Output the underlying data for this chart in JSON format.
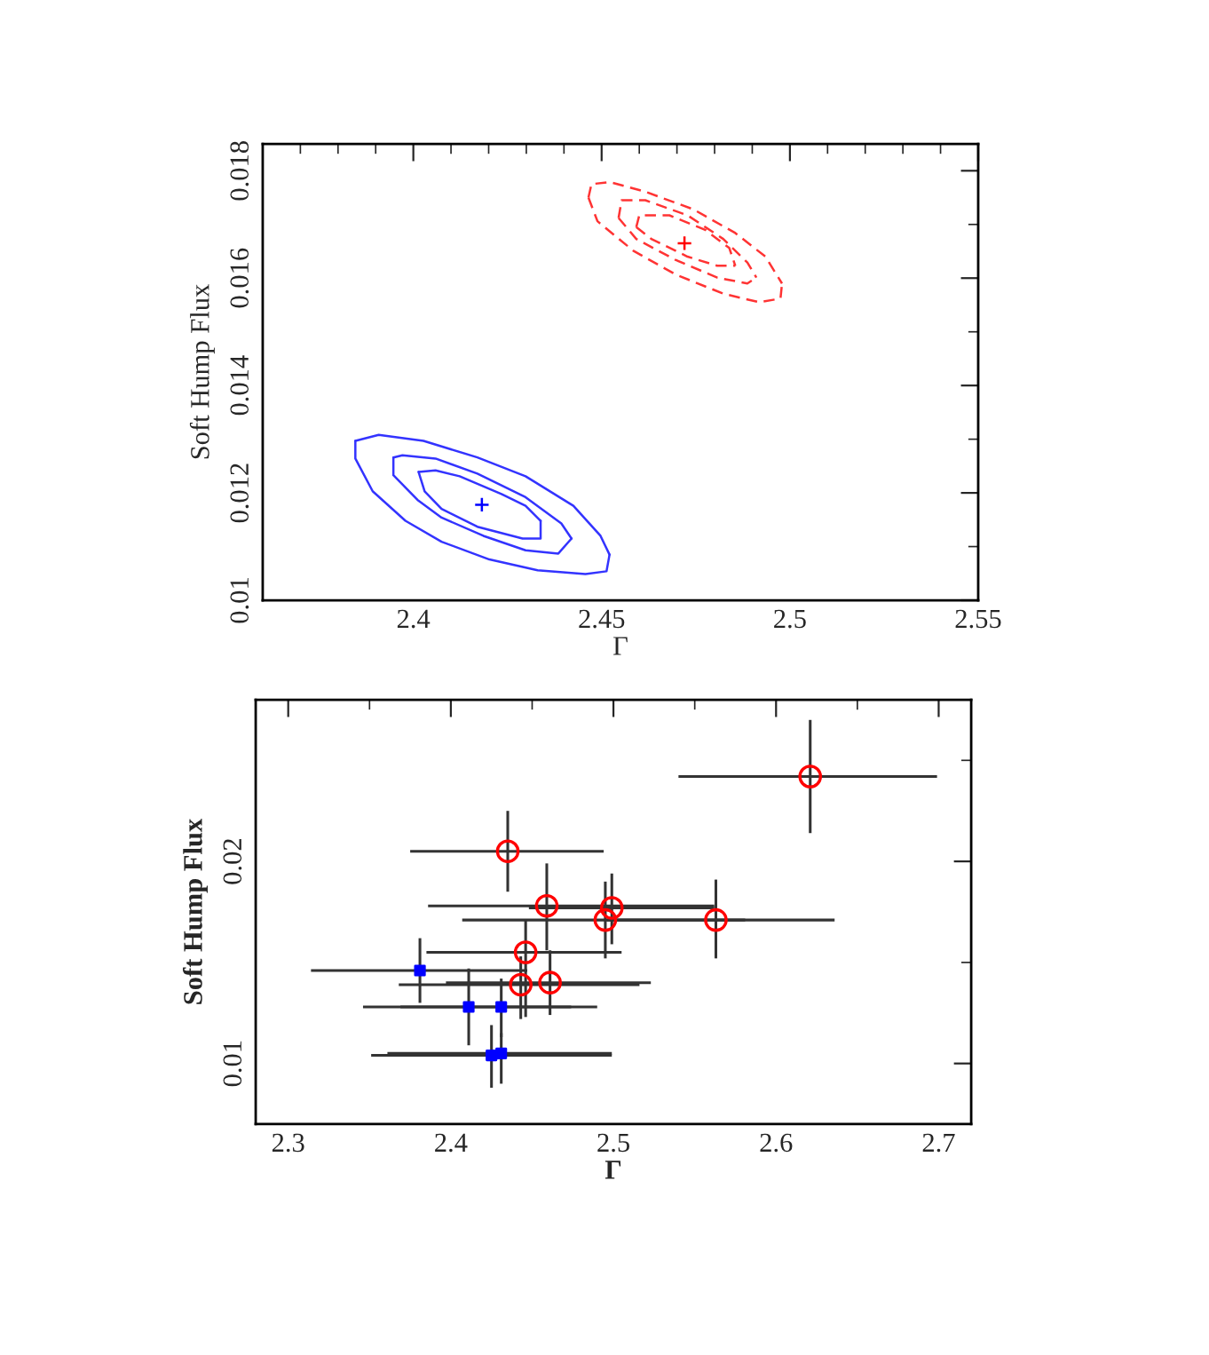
{
  "chart_data": [
    {
      "type": "line",
      "xlabel": "Γ",
      "ylabel": "Soft Hump Flux",
      "xlim": [
        2.36,
        2.55
      ],
      "ylim": [
        0.01,
        0.0185
      ],
      "xticks": [
        {
          "value": 2.37,
          "label": null
        },
        {
          "value": 2.38,
          "label": null
        },
        {
          "value": 2.39,
          "label": null
        },
        2.4,
        {
          "value": 2.41,
          "label": null
        },
        {
          "value": 2.42,
          "label": null
        },
        {
          "value": 2.43,
          "label": null
        },
        {
          "value": 2.44,
          "label": null
        },
        2.45,
        {
          "value": 2.46,
          "label": null
        },
        {
          "value": 2.47,
          "label": null
        },
        {
          "value": 2.48,
          "label": null
        },
        {
          "value": 2.49,
          "label": null
        },
        2.5,
        {
          "value": 2.51,
          "label": null
        },
        {
          "value": 2.52,
          "label": null
        },
        {
          "value": 2.53,
          "label": null
        },
        {
          "value": 2.54,
          "label": null
        },
        2.55
      ],
      "yticks": [
        0.01,
        {
          "value": 0.011,
          "label": null
        },
        0.012,
        {
          "value": 0.013,
          "label": null
        },
        0.014,
        {
          "value": 0.015,
          "label": null
        },
        0.016,
        {
          "value": 0.017,
          "label": null
        },
        0.018
      ],
      "series": [
        {
          "color": "#3333ff",
          "line_style": "solid",
          "marker": "none",
          "x": [
            2.3846,
            2.3908,
            2.4027,
            2.417,
            2.4298,
            2.4425,
            2.4497,
            2.4521
          ],
          "values": [
            0.01297,
            0.01308,
            0.01297,
            0.01266,
            0.01231,
            0.01176,
            0.0112,
            0.01085
          ]
        },
        {
          "color": "#3333ff",
          "line_style": "solid",
          "marker": "none",
          "x": [
            2.3846,
            2.3846,
            2.3892,
            2.3979,
            2.4075,
            2.4202,
            2.433,
            2.4457,
            2.4513,
            2.4521
          ],
          "values": [
            0.01297,
            0.01264,
            0.01203,
            0.01148,
            0.01109,
            0.01076,
            0.01056,
            0.01049,
            0.01054,
            0.01085
          ]
        },
        {
          "color": "#3333ff",
          "line_style": "solid",
          "marker": "none",
          "x": [
            2.3947,
            2.3971,
            2.4059,
            2.417,
            2.4298,
            2.4393,
            2.442
          ],
          "values": [
            0.01266,
            0.0127,
            0.01264,
            0.01236,
            0.01192,
            0.01143,
            0.01115
          ]
        },
        {
          "color": "#3333ff",
          "line_style": "solid",
          "marker": "none",
          "x": [
            2.3947,
            2.3947,
            2.4011,
            2.4075,
            2.4186,
            2.4298,
            2.4385,
            2.442
          ],
          "values": [
            0.01266,
            0.01233,
            0.01187,
            0.01154,
            0.0112,
            0.01093,
            0.01087,
            0.01115
          ]
        },
        {
          "color": "#3333ff",
          "line_style": "solid",
          "marker": "none",
          "x": [
            2.4014,
            2.4059,
            2.4123,
            2.4234,
            2.4298,
            2.4338
          ],
          "values": [
            0.01239,
            0.01242,
            0.01231,
            0.01198,
            0.01176,
            0.01148
          ]
        },
        {
          "color": "#3333ff",
          "line_style": "solid",
          "marker": "none",
          "x": [
            2.4014,
            2.403,
            2.4075,
            2.417,
            2.429,
            2.4338,
            2.4338
          ],
          "values": [
            0.01239,
            0.01203,
            0.0117,
            0.01137,
            0.01115,
            0.01115,
            0.01148
          ]
        },
        {
          "type": "scatter",
          "color": "#0000ff",
          "marker": "cross",
          "x": [
            2.4182
          ],
          "values": [
            0.01178
          ]
        },
        {
          "color": "#ff3333",
          "line_style": "dashed",
          "marker": "none",
          "x": [
            2.4465,
            2.4473,
            2.4521,
            2.4616,
            2.4744,
            2.4855,
            2.4935,
            2.4979
          ],
          "values": [
            0.0175,
            0.01775,
            0.01779,
            0.01761,
            0.01728,
            0.01684,
            0.0164,
            0.0159
          ]
        },
        {
          "color": "#ff3333",
          "line_style": "dashed",
          "marker": "none",
          "x": [
            2.4465,
            2.4489,
            2.4584,
            2.4696,
            2.4823,
            2.4919,
            2.4975,
            2.4979
          ],
          "values": [
            0.0175,
            0.01706,
            0.01651,
            0.01607,
            0.01571,
            0.01555,
            0.01562,
            0.0159
          ]
        },
        {
          "color": "#ff3333",
          "line_style": "dashed",
          "marker": "none",
          "x": [
            2.4545,
            2.4553,
            2.4616,
            2.4728,
            2.4823,
            2.4887,
            2.4911
          ],
          "values": [
            0.01712,
            0.01745,
            0.01745,
            0.01717,
            0.01673,
            0.01629,
            0.01601
          ]
        },
        {
          "color": "#ff3333",
          "line_style": "dashed",
          "marker": "none",
          "x": [
            2.4545,
            2.4592,
            2.4696,
            2.4807,
            2.4887,
            2.4911
          ],
          "values": [
            0.01712,
            0.01673,
            0.01634,
            0.01601,
            0.0159,
            0.01601
          ]
        },
        {
          "color": "#ff3333",
          "line_style": "dashed",
          "marker": "none",
          "x": [
            2.4592,
            2.46,
            2.468,
            2.4775,
            2.4839,
            2.4855
          ],
          "values": [
            0.01695,
            0.01717,
            0.01717,
            0.0169,
            0.01656,
            0.01623
          ]
        },
        {
          "color": "#ff3333",
          "line_style": "dashed",
          "marker": "none",
          "x": [
            2.4592,
            2.4632,
            2.4728,
            2.4807,
            2.4855
          ],
          "values": [
            0.01695,
            0.01673,
            0.0164,
            0.01623,
            0.01623
          ]
        },
        {
          "type": "scatter",
          "color": "#ff0000",
          "marker": "cross",
          "x": [
            2.472
          ],
          "values": [
            0.01665
          ]
        }
      ]
    },
    {
      "type": "scatter",
      "xlabel": "Γ",
      "ylabel": "Soft Hump Flux",
      "xlim": [
        2.28,
        2.72
      ],
      "ylim": [
        0.007,
        0.028
      ],
      "xticks": [
        2.3,
        {
          "value": 2.35,
          "label": null
        },
        2.4,
        {
          "value": 2.45,
          "label": null
        },
        2.5,
        {
          "value": 2.55,
          "label": null
        },
        2.6,
        {
          "value": 2.65,
          "label": null
        },
        2.7
      ],
      "yticks": [
        0.01,
        {
          "value": 0.015,
          "label": null
        },
        0.02,
        {
          "value": 0.025,
          "label": null
        }
      ],
      "series": [
        {
          "color": "#ff0000",
          "marker": "circle",
          "x": [
            2.621,
            2.435,
            2.459,
            2.499,
            2.495,
            2.563,
            2.446,
            2.443,
            2.461
          ],
          "values": [
            0.0242,
            0.0205,
            0.0178,
            0.0177,
            0.0171,
            0.0171,
            0.0155,
            0.0139,
            0.014
          ],
          "xerrors": [
            [
              2.54,
              2.699
            ],
            [
              2.375,
              2.494
            ],
            [
              2.386,
              2.562
            ],
            [
              2.448,
              2.562
            ],
            [
              2.407,
              2.581
            ],
            [
              2.496,
              2.636
            ],
            [
              2.385,
              2.505
            ],
            [
              2.368,
              2.516
            ],
            [
              2.397,
              2.523
            ]
          ],
          "errors": [
            [
              0.0214,
              0.027
            ],
            [
              0.0185,
              0.0225
            ],
            [
              0.0156,
              0.0199
            ],
            [
              0.0159,
              0.0194
            ],
            [
              0.0152,
              0.019
            ],
            [
              0.0152,
              0.0191
            ],
            [
              0.0123,
              0.0171
            ],
            [
              0.0122,
              0.0153
            ],
            [
              0.0124,
              0.0156
            ]
          ]
        },
        {
          "color": "#0000ff",
          "marker": "square",
          "x": [
            2.381,
            2.411,
            2.431,
            2.425,
            2.431
          ],
          "values": [
            0.0146,
            0.0128,
            0.0128,
            0.0104,
            0.0105
          ],
          "xerrors": [
            [
              2.314,
              2.447
            ],
            [
              2.346,
              2.474
            ],
            [
              2.369,
              2.49
            ],
            [
              2.351,
              2.499
            ],
            [
              2.361,
              2.499
            ]
          ],
          "errors": [
            [
              0.013,
              0.0162
            ],
            [
              0.0109,
              0.0147
            ],
            [
              0.0113,
              0.0142
            ],
            [
              0.0088,
              0.0119
            ],
            [
              0.009,
              0.0115
            ]
          ]
        }
      ]
    }
  ]
}
